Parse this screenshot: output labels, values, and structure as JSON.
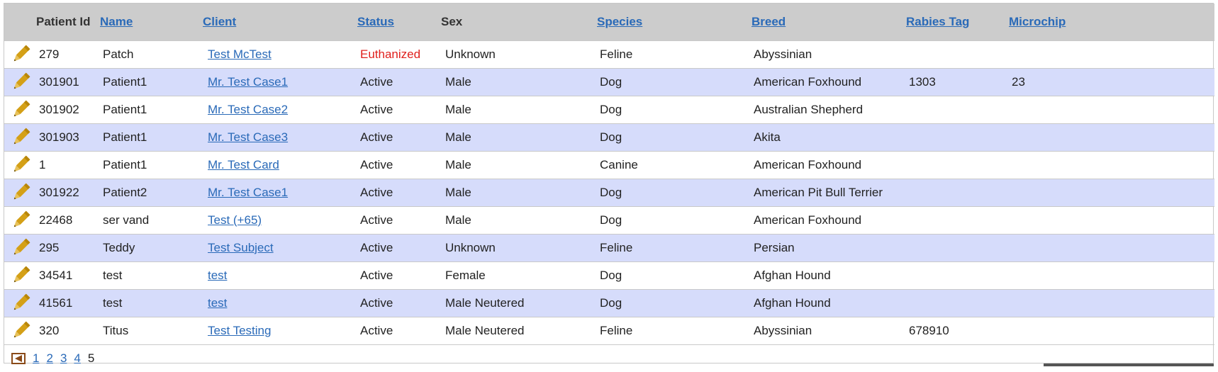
{
  "headers": {
    "patient_id": "Patient Id",
    "name": "Name",
    "client": "Client",
    "status": "Status",
    "sex": "Sex",
    "species": "Species",
    "breed": "Breed",
    "rabies_tag": "Rabies Tag",
    "microchip": "Microchip"
  },
  "rows": [
    {
      "id": "279",
      "name": "Patch",
      "client": "Test McTest",
      "status": "Euthanized",
      "sex": "Unknown",
      "species": "Feline",
      "breed": "Abyssinian",
      "rabies": "",
      "microchip": ""
    },
    {
      "id": "301901",
      "name": "Patient1",
      "client": "Mr. Test Case1",
      "status": "Active",
      "sex": "Male",
      "species": "Dog",
      "breed": "American Foxhound",
      "rabies": "1303",
      "microchip": "23"
    },
    {
      "id": "301902",
      "name": "Patient1",
      "client": "Mr. Test Case2",
      "status": "Active",
      "sex": "Male",
      "species": "Dog",
      "breed": "Australian Shepherd",
      "rabies": "",
      "microchip": ""
    },
    {
      "id": "301903",
      "name": "Patient1",
      "client": "Mr. Test Case3",
      "status": "Active",
      "sex": "Male",
      "species": "Dog",
      "breed": "Akita",
      "rabies": "",
      "microchip": ""
    },
    {
      "id": "1",
      "name": "Patient1",
      "client": "Mr. Test Card",
      "status": "Active",
      "sex": "Male",
      "species": "Canine",
      "breed": "American Foxhound",
      "rabies": "",
      "microchip": ""
    },
    {
      "id": "301922",
      "name": "Patient2",
      "client": "Mr. Test Case1",
      "status": "Active",
      "sex": "Male",
      "species": "Dog",
      "breed": "American Pit Bull Terrier",
      "rabies": "",
      "microchip": ""
    },
    {
      "id": "22468",
      "name": "ser vand",
      "client": "Test (+65)",
      "status": "Active",
      "sex": "Male",
      "species": "Dog",
      "breed": "American Foxhound",
      "rabies": "",
      "microchip": ""
    },
    {
      "id": "295",
      "name": "Teddy",
      "client": "Test Subject",
      "status": "Active",
      "sex": "Unknown",
      "species": "Feline",
      "breed": "Persian",
      "rabies": "",
      "microchip": ""
    },
    {
      "id": "34541",
      "name": "test",
      "client": "test",
      "status": "Active",
      "sex": "Female",
      "species": "Dog",
      "breed": "Afghan Hound",
      "rabies": "",
      "microchip": ""
    },
    {
      "id": "41561",
      "name": "test",
      "client": "test",
      "status": "Active",
      "sex": "Male Neutered",
      "species": "Dog",
      "breed": "Afghan Hound",
      "rabies": "",
      "microchip": ""
    },
    {
      "id": "320",
      "name": "Titus",
      "client": "Test Testing",
      "status": "Active",
      "sex": "Male Neutered",
      "species": "Feline",
      "breed": "Abyssinian",
      "rabies": "678910",
      "microchip": ""
    }
  ],
  "pager": {
    "pages": [
      "1",
      "2",
      "3",
      "4",
      "5"
    ],
    "current": "5"
  },
  "icons": {
    "edit": "pencil-icon",
    "prev": "previous-page-icon"
  },
  "colors": {
    "header_bg": "#cccccc",
    "alt_row_bg": "#d6dcfb",
    "link": "#2a6ab8",
    "euthanized": "#e0201d",
    "pencil": "#d4a017"
  }
}
